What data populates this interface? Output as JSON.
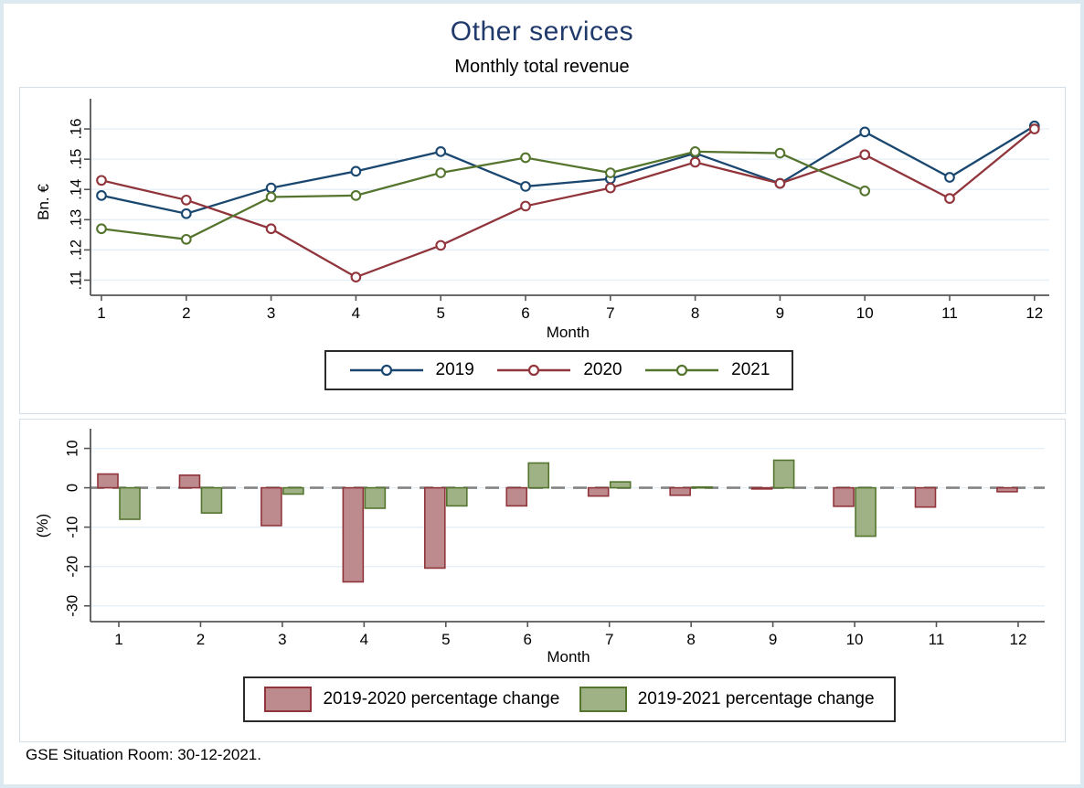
{
  "title": "Other services",
  "subtitle": "Monthly total revenue",
  "footer": "GSE Situation Room: 30-12-2021.",
  "colors": {
    "navy": "#1a476f",
    "maroon": "#90353b",
    "forest": "#55752f",
    "bar_red_fill": "#bd8a8e",
    "bar_green_fill": "#9fb285",
    "grid": "#e5eff7",
    "axis": "#565656",
    "zero_dash": "#848484",
    "frame": "#dce9f1",
    "title_color": "#203a6b"
  },
  "chart_data": [
    {
      "type": "line",
      "xlabel": "Month",
      "ylabel": "Bn. €",
      "categories": [
        "1",
        "2",
        "3",
        "4",
        "5",
        "6",
        "7",
        "8",
        "9",
        "10",
        "11",
        "12"
      ],
      "ylim": [
        0.105,
        0.17
      ],
      "yticks": [
        0.11,
        0.12,
        0.13,
        0.14,
        0.15,
        0.16
      ],
      "ytick_labels": [
        ".11",
        ".12",
        ".13",
        ".14",
        ".15",
        ".16"
      ],
      "grid": true,
      "legend_position": "bottom",
      "series": [
        {
          "name": "2019",
          "color": "#1a476f",
          "values": [
            0.138,
            0.132,
            0.1405,
            0.146,
            0.1525,
            0.141,
            0.1435,
            0.152,
            0.142,
            0.159,
            0.144,
            0.161
          ]
        },
        {
          "name": "2020",
          "color": "#90353b",
          "values": [
            0.143,
            0.1365,
            0.127,
            0.111,
            0.1215,
            0.1345,
            0.1405,
            0.149,
            0.142,
            0.1515,
            0.137,
            0.16
          ]
        },
        {
          "name": "2021",
          "color": "#55752f",
          "values": [
            0.127,
            0.1235,
            0.1375,
            0.138,
            0.1455,
            0.1505,
            0.1455,
            0.1525,
            0.152,
            0.1395,
            null,
            null
          ]
        }
      ]
    },
    {
      "type": "bar",
      "xlabel": "Month",
      "ylabel": "(%)",
      "categories": [
        "1",
        "2",
        "3",
        "4",
        "5",
        "6",
        "7",
        "8",
        "9",
        "10",
        "11",
        "12"
      ],
      "ylim": [
        -34,
        15
      ],
      "yticks": [
        10,
        0,
        -10,
        -20,
        -30
      ],
      "ytick_labels": [
        "10",
        "0",
        "-10",
        "-20",
        "-30"
      ],
      "grid": true,
      "zero_line": "dashed",
      "legend_position": "bottom",
      "series": [
        {
          "name": "2019-2020 percentage change",
          "fill": "#bd8a8e",
          "stroke": "#90353b",
          "values": [
            3.5,
            3.2,
            -9.6,
            -23.9,
            -20.4,
            -4.6,
            -2.1,
            -1.9,
            -0.3,
            -4.7,
            -4.9,
            -1.0
          ]
        },
        {
          "name": "2019-2021 percentage change",
          "fill": "#9fb285",
          "stroke": "#55752f",
          "values": [
            -8.0,
            -6.4,
            -1.6,
            -5.2,
            -4.6,
            6.3,
            1.5,
            0.2,
            7.0,
            -12.3,
            null,
            null
          ]
        }
      ]
    }
  ]
}
